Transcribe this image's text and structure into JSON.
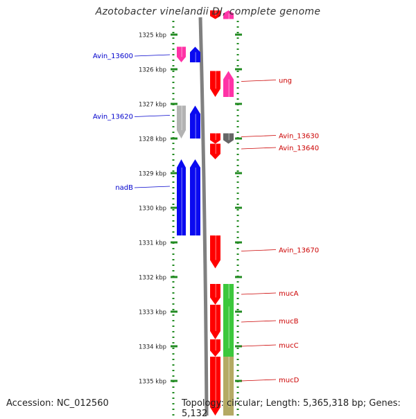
{
  "title": "Azotobacter vinelandii DJ, complete genome",
  "accession": "Accession: NC_012560",
  "topology": "Topology: circular; Length: 5,365,318 bp; Genes: 5,132",
  "colors": {
    "left_label": "#0000cc",
    "right_label": "#cc0000",
    "ruler_dots": "#228b22",
    "backbone": "#808080",
    "blue": "#0a0af0",
    "magenta": "#ff33a6",
    "red": "#ff0000",
    "gray": "#b3b3b3",
    "darkgray": "#666666",
    "green": "#3cc83c",
    "olive": "#b4aa64"
  },
  "ruler": {
    "unit": "kbp",
    "ticks": [
      "1325 kbp",
      "1326 kbp",
      "1327 kbp",
      "1328 kbp",
      "1329 kbp",
      "1330 kbp",
      "1331 kbp",
      "1332 kbp",
      "1333 kbp",
      "1334 kbp",
      "1335 kbp"
    ],
    "start_kbp": 1324.55,
    "end_kbp": 1336.0
  },
  "left_labels": [
    {
      "text": "Avin_13600",
      "kbp": 1325.6
    },
    {
      "text": "Avin_13620",
      "kbp": 1327.35
    },
    {
      "text": "nadB",
      "kbp": 1329.4
    }
  ],
  "right_labels": [
    {
      "text": "ung",
      "kbp": 1326.35
    },
    {
      "text": "Avin_13630",
      "kbp": 1327.95
    },
    {
      "text": "Avin_13640",
      "kbp": 1328.3
    },
    {
      "text": "Avin_13670",
      "kbp": 1331.25
    },
    {
      "text": "mucA",
      "kbp": 1332.5
    },
    {
      "text": "mucB",
      "kbp": 1333.3
    },
    {
      "text": "mucC",
      "kbp": 1334.0
    },
    {
      "text": "mucD",
      "kbp": 1335.0
    }
  ],
  "features": [
    {
      "name": "top-red",
      "track": "R1",
      "start_kbp": 1324.3,
      "end_kbp": 1324.55,
      "color": "red",
      "strand": "-"
    },
    {
      "name": "top-magenta",
      "track": "R2",
      "start_kbp": 1324.3,
      "end_kbp": 1324.55,
      "color": "magenta",
      "strand": "+"
    },
    {
      "name": "Avin_13600",
      "track": "L1",
      "start_kbp": 1325.35,
      "end_kbp": 1325.8,
      "color": "magenta",
      "strand": "-"
    },
    {
      "name": "blue-13610",
      "track": "L2",
      "start_kbp": 1325.35,
      "end_kbp": 1325.8,
      "color": "blue",
      "strand": "+"
    },
    {
      "name": "ung-red",
      "track": "R1",
      "start_kbp": 1326.05,
      "end_kbp": 1326.8,
      "color": "red",
      "strand": "-"
    },
    {
      "name": "ung",
      "track": "R2",
      "start_kbp": 1326.05,
      "end_kbp": 1326.8,
      "color": "magenta",
      "strand": "+"
    },
    {
      "name": "Avin_13620",
      "track": "L1",
      "start_kbp": 1327.05,
      "end_kbp": 1328.0,
      "color": "gray",
      "strand": "-"
    },
    {
      "name": "blue-13620b",
      "track": "L2",
      "start_kbp": 1327.05,
      "end_kbp": 1328.0,
      "color": "blue",
      "strand": "+"
    },
    {
      "name": "Avin_13630",
      "track": "R1",
      "start_kbp": 1327.85,
      "end_kbp": 1328.15,
      "color": "red",
      "strand": "-"
    },
    {
      "name": "Avin_13630b",
      "track": "R2",
      "start_kbp": 1327.85,
      "end_kbp": 1328.15,
      "color": "darkgray",
      "strand": "-"
    },
    {
      "name": "Avin_13640",
      "track": "R1",
      "start_kbp": 1328.15,
      "end_kbp": 1328.6,
      "color": "red",
      "strand": "-"
    },
    {
      "name": "nadB",
      "track": "L1",
      "start_kbp": 1328.6,
      "end_kbp": 1330.8,
      "color": "blue",
      "strand": "+"
    },
    {
      "name": "nadB-2",
      "track": "L2",
      "start_kbp": 1328.6,
      "end_kbp": 1330.8,
      "color": "blue",
      "strand": "+"
    },
    {
      "name": "Avin_13670",
      "track": "R1",
      "start_kbp": 1330.8,
      "end_kbp": 1331.75,
      "color": "red",
      "strand": "-"
    },
    {
      "name": "mucA",
      "track": "R1",
      "start_kbp": 1332.2,
      "end_kbp": 1332.8,
      "color": "red",
      "strand": "-"
    },
    {
      "name": "mucB",
      "track": "R1",
      "start_kbp": 1332.8,
      "end_kbp": 1333.8,
      "color": "red",
      "strand": "-"
    },
    {
      "name": "mucC",
      "track": "R1",
      "start_kbp": 1333.8,
      "end_kbp": 1334.3,
      "color": "red",
      "strand": "-"
    },
    {
      "name": "mucD",
      "track": "R1",
      "start_kbp": 1334.3,
      "end_kbp": 1336.0,
      "color": "red",
      "strand": "-"
    },
    {
      "name": "green-1",
      "track": "R2",
      "start_kbp": 1332.2,
      "end_kbp": 1332.85,
      "color": "green",
      "strand": ""
    },
    {
      "name": "green-2",
      "track": "R2",
      "start_kbp": 1332.85,
      "end_kbp": 1334.3,
      "color": "green",
      "strand": ""
    },
    {
      "name": "olive-1",
      "track": "R2",
      "start_kbp": 1334.3,
      "end_kbp": 1336.0,
      "color": "olive",
      "strand": ""
    }
  ]
}
